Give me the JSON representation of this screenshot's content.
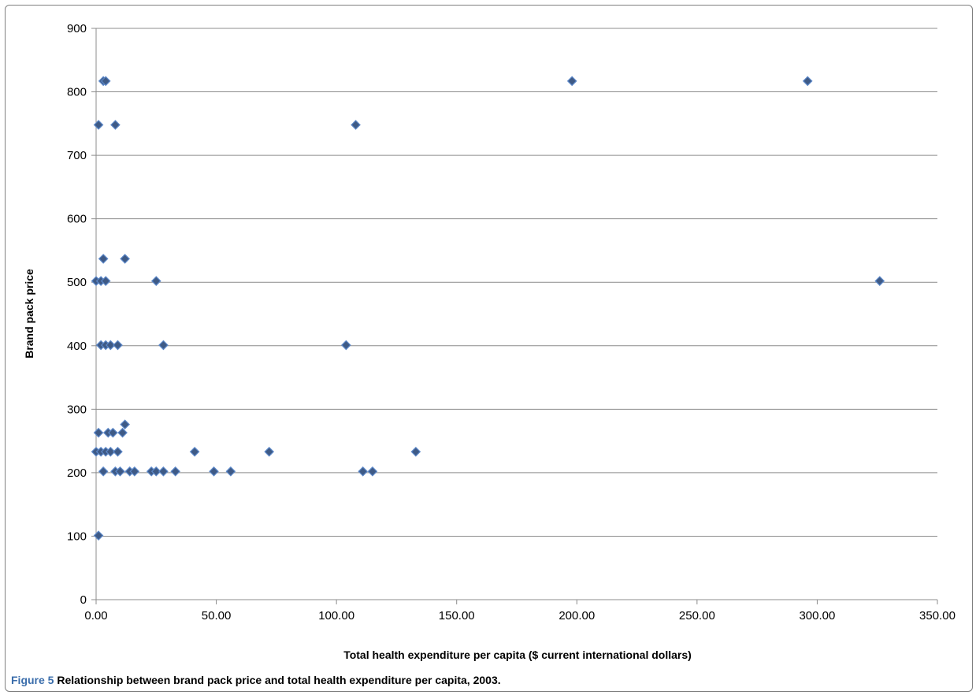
{
  "chart_data": {
    "type": "scatter",
    "title": "",
    "xlabel": "Total health expenditure per capita ($ current international dollars)",
    "ylabel": "Brand pack price",
    "xlim": [
      0,
      350
    ],
    "ylim": [
      0,
      900
    ],
    "x_ticks": [
      "0.00",
      "50.00",
      "100.00",
      "150.00",
      "200.00",
      "250.00",
      "300.00",
      "350.00"
    ],
    "y_ticks": [
      "0",
      "100",
      "200",
      "300",
      "400",
      "500",
      "600",
      "700",
      "800",
      "900"
    ],
    "grid": "horizontal",
    "marker": "diamond",
    "marker_color": "#3e5a86",
    "series": [
      {
        "points": [
          [
            3,
            817
          ],
          [
            4,
            817
          ],
          [
            198,
            817
          ],
          [
            296,
            817
          ],
          [
            1,
            748
          ],
          [
            8,
            748
          ],
          [
            108,
            748
          ],
          [
            3,
            537
          ],
          [
            12,
            537
          ],
          [
            0,
            502
          ],
          [
            2,
            502
          ],
          [
            4,
            502
          ],
          [
            25,
            502
          ],
          [
            326,
            502
          ],
          [
            2,
            401
          ],
          [
            4,
            401
          ],
          [
            6,
            401
          ],
          [
            9,
            401
          ],
          [
            28,
            401
          ],
          [
            104,
            401
          ],
          [
            12,
            276
          ],
          [
            1,
            263
          ],
          [
            5,
            263
          ],
          [
            7,
            263
          ],
          [
            11,
            263
          ],
          [
            0,
            233
          ],
          [
            2,
            233
          ],
          [
            4,
            233
          ],
          [
            6,
            233
          ],
          [
            9,
            233
          ],
          [
            41,
            233
          ],
          [
            72,
            233
          ],
          [
            133,
            233
          ],
          [
            3,
            202
          ],
          [
            8,
            202
          ],
          [
            10,
            202
          ],
          [
            14,
            202
          ],
          [
            16,
            202
          ],
          [
            23,
            202
          ],
          [
            25,
            202
          ],
          [
            28,
            202
          ],
          [
            33,
            202
          ],
          [
            49,
            202
          ],
          [
            56,
            202
          ],
          [
            111,
            202
          ],
          [
            115,
            202
          ],
          [
            1,
            101
          ]
        ]
      }
    ]
  },
  "caption": {
    "label": "Figure 5",
    "text": " Relationship between brand pack price and total health expenditure per capita, 2003."
  }
}
